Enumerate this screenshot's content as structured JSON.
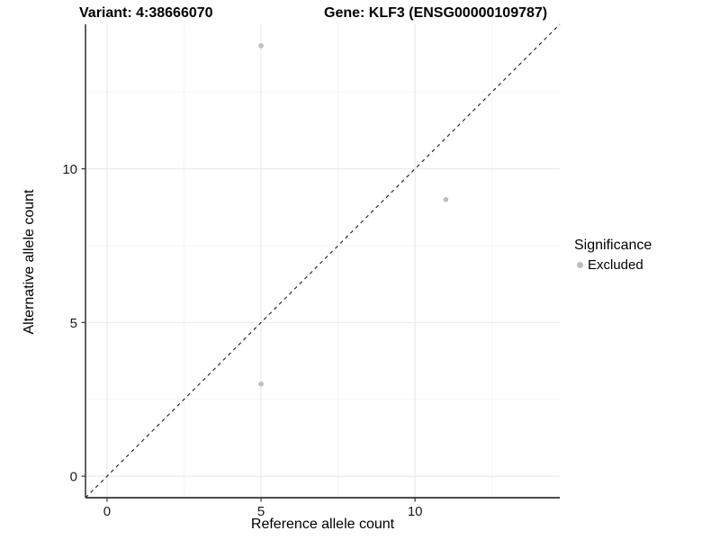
{
  "figure": {
    "title_left": "Variant: 4:38666070",
    "title_right": "Gene: KLF3 (ENSG00000109787)"
  },
  "chart_data": {
    "type": "scatter",
    "title": "Variant: 4:38666070   Gene: KLF3 (ENSG00000109787)",
    "xlabel": "Reference allele count",
    "ylabel": "Alternative allele count",
    "xlim": [
      -0.7,
      14.7
    ],
    "ylim": [
      -0.7,
      14.7
    ],
    "x_ticks_major": [
      0,
      5,
      10
    ],
    "x_ticks_minor": [
      2.5,
      7.5,
      12.5
    ],
    "y_ticks_major": [
      0,
      5,
      10
    ],
    "y_ticks_minor": [
      2.5,
      7.5,
      12.5
    ],
    "grid": true,
    "points": [
      {
        "x": 5,
        "y": 14,
        "significance": "Excluded"
      },
      {
        "x": 11,
        "y": 9,
        "significance": "Excluded"
      },
      {
        "x": 5,
        "y": 3,
        "significance": "Excluded"
      }
    ],
    "reference_line": {
      "type": "identity",
      "style": "dashed",
      "from": [
        -0.7,
        -0.7
      ],
      "to": [
        14.7,
        14.7
      ]
    },
    "legend": {
      "title": "Significance",
      "position": "right",
      "items": [
        {
          "label": "Excluded",
          "color": "#bdbdbd"
        }
      ]
    },
    "colors": {
      "point": "#bdbdbd",
      "gridline_major": "#ebebeb",
      "gridline_minor": "#f5f5f5",
      "axis_line": "#4d4d4d",
      "tick_mark": "#333333",
      "tick_label": "#1a1a1a",
      "reference_line": "#1a1a1a",
      "background": "#ffffff"
    }
  }
}
